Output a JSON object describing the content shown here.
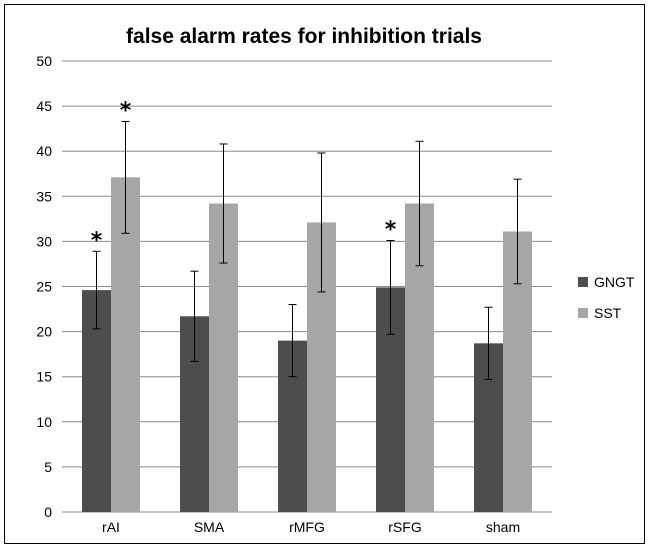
{
  "chart_data": {
    "type": "bar",
    "title": "false alarm rates for inhibition trials",
    "categories": [
      "rAI",
      "SMA",
      "rMFG",
      "rSFG",
      "sham"
    ],
    "series": [
      {
        "name": "GNGT",
        "color": "#4d4d4d",
        "values": [
          24.6,
          21.7,
          19.0,
          24.9,
          18.7
        ],
        "error": [
          4.3,
          5.0,
          4.0,
          5.2,
          4.0
        ]
      },
      {
        "name": "SST",
        "color": "#a6a6a6",
        "values": [
          37.1,
          34.2,
          32.1,
          34.2,
          31.1
        ],
        "error": [
          6.2,
          6.6,
          7.7,
          6.9,
          5.8
        ]
      }
    ],
    "annotations": [
      {
        "category": "rAI",
        "series": "GNGT",
        "text": "*"
      },
      {
        "category": "rAI",
        "series": "SST",
        "text": "*"
      },
      {
        "category": "rSFG",
        "series": "GNGT",
        "text": "*"
      }
    ],
    "ylim": [
      0,
      50
    ],
    "yticks": [
      "0",
      "5",
      "10",
      "15",
      "20",
      "25",
      "30",
      "35",
      "40",
      "45",
      "50"
    ],
    "xlabel": "",
    "ylabel": "",
    "grid": true,
    "legend": "right"
  }
}
